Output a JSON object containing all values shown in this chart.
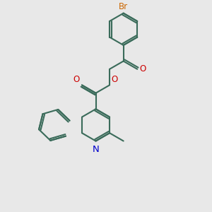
{
  "bg_color": "#e8e8e8",
  "bond_color": "#3a6b5a",
  "bond_width": 1.5,
  "N_color": "#0000cc",
  "O_color": "#cc0000",
  "Br_color": "#cc6600",
  "font_size": 8.5,
  "figsize": [
    3.0,
    3.0
  ],
  "dpi": 100,
  "xlim": [
    0,
    10
  ],
  "ylim": [
    0,
    10
  ]
}
